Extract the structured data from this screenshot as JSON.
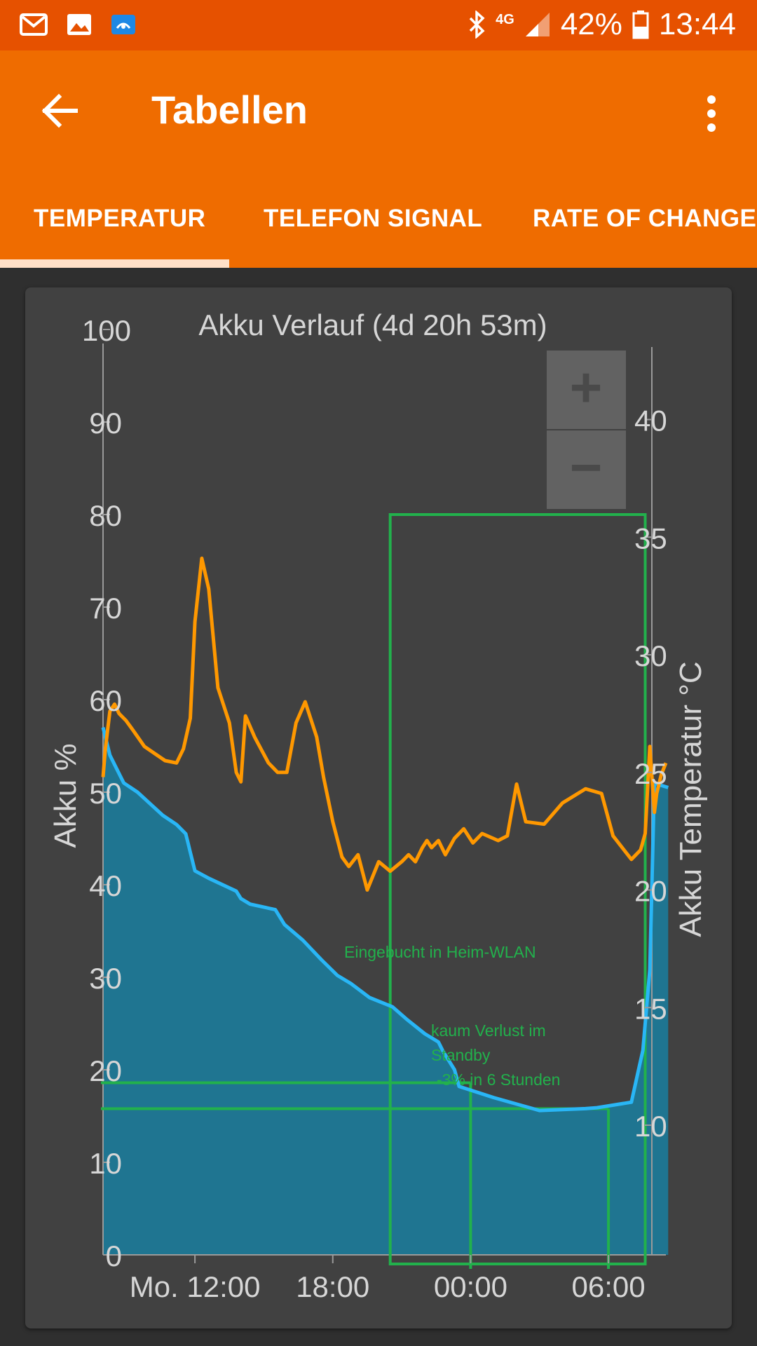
{
  "status_bar": {
    "battery_percent": "42%",
    "time": "13:44",
    "network": "4G",
    "notification_icons": [
      "mail-icon",
      "image-icon",
      "app-icon"
    ]
  },
  "app_bar": {
    "title": "Tabellen",
    "tabs": [
      {
        "label": "TEMPERATUR",
        "selected": true
      },
      {
        "label": "TELEFON SIGNAL",
        "selected": false
      },
      {
        "label": "RATE OF CHANGE",
        "selected": false
      }
    ]
  },
  "zoom": {
    "plus": "+",
    "minus": "−"
  },
  "colors": {
    "accent": "#ef6c00",
    "status_bar": "#e65100",
    "battery_series": "#29b6f6",
    "temperature_series": "#ff9800",
    "annotation": "#22b14c"
  },
  "chart_data": {
    "type": "area",
    "title": "Akku Verlauf (4d 20h 53m)",
    "ylabel": "Akku %",
    "y2label": "Akku Temperatur °C",
    "ylim": [
      0,
      100
    ],
    "y2lim": [
      5,
      44
    ],
    "yticks": [
      "0",
      "10",
      "20",
      "30",
      "40",
      "50",
      "60",
      "70",
      "80",
      "90",
      "100"
    ],
    "y2ticks": [
      "10",
      "15",
      "20",
      "25",
      "30",
      "35",
      "40"
    ],
    "y2tick_values": [
      10,
      15,
      20,
      25,
      30,
      35,
      40
    ],
    "xlim": [
      8,
      32.5
    ],
    "xticks": [
      {
        "label": "Mo. 12:00",
        "x": 12
      },
      {
        "label": "18:00",
        "x": 18
      },
      {
        "label": "00:00",
        "x": 24
      },
      {
        "label": "06:00",
        "x": 30
      }
    ],
    "grid": false,
    "series": [
      {
        "name": "Akku",
        "axis": "left",
        "x": [
          8.0,
          8.1,
          8.3,
          8.9,
          9.5,
          10.6,
          11.2,
          11.6,
          11.7,
          11.8,
          11.9,
          12.0,
          12.6,
          13.8,
          14.0,
          14.4,
          15.5,
          15.9,
          16.7,
          17.5,
          18.2,
          18.8,
          19.6,
          20.6,
          21.2,
          22.0,
          22.6,
          22.8,
          23.3,
          23.5,
          24.0,
          25.0,
          27.0,
          29.0,
          29.5,
          31.0,
          31.3,
          31.5,
          31.8,
          32.0,
          32.2,
          32.6
        ],
        "y": [
          57,
          56,
          54,
          51,
          50,
          47.5,
          46.5,
          45.5,
          44.5,
          43.5,
          42.5,
          41.5,
          40.7,
          39.3,
          38.5,
          37.9,
          37.3,
          35.7,
          34.0,
          31.9,
          30.2,
          29.3,
          27.8,
          26.8,
          25.5,
          23.9,
          23.0,
          22.0,
          20.0,
          18.2,
          17.8,
          17.0,
          15.6,
          15.8,
          15.9,
          16.5,
          19.9,
          22.1,
          30.8,
          51.0,
          50.8,
          50.5
        ]
      },
      {
        "name": "Temperatur",
        "axis": "right",
        "x": [
          8.0,
          8.1,
          8.3,
          8.5,
          8.7,
          9.0,
          9.3,
          9.8,
          10.7,
          11.2,
          11.5,
          11.8,
          12.0,
          12.3,
          12.6,
          13.0,
          13.5,
          13.8,
          14.0,
          14.2,
          14.6,
          15.2,
          15.6,
          16.0,
          16.4,
          16.8,
          17.3,
          17.6,
          18.0,
          18.4,
          18.7,
          19.1,
          19.5,
          20.0,
          20.5,
          21.0,
          21.3,
          21.6,
          21.9,
          22.1,
          22.3,
          22.6,
          22.9,
          23.3,
          23.7,
          24.1,
          24.5,
          25.2,
          25.6,
          26.0,
          26.4,
          27.2,
          28.0,
          29.0,
          29.7,
          30.2,
          31.0,
          31.4,
          31.6,
          31.8,
          32.0,
          32.1,
          32.3,
          32.5
        ],
        "y": [
          24.8,
          26.0,
          27.6,
          27.9,
          27.5,
          27.2,
          26.8,
          26.1,
          25.5,
          25.4,
          26.0,
          27.3,
          31.4,
          34.1,
          32.8,
          28.6,
          27.1,
          25.0,
          24.6,
          27.4,
          26.5,
          25.4,
          25.0,
          25.0,
          27.1,
          28.0,
          26.5,
          24.8,
          22.9,
          21.4,
          21.0,
          21.5,
          20.0,
          21.2,
          20.8,
          21.2,
          21.5,
          21.2,
          21.8,
          22.1,
          21.8,
          22.1,
          21.5,
          22.2,
          22.6,
          22.0,
          22.4,
          22.1,
          22.3,
          24.5,
          22.9,
          22.8,
          23.7,
          24.3,
          24.1,
          22.3,
          21.3,
          21.7,
          22.4,
          26.1,
          23.3,
          24.1,
          24.9,
          25.4
        ]
      }
    ],
    "annotations": [
      {
        "text": "Eingebucht in Heim-WLAN"
      },
      {
        "lines": [
          "kaum Verlust im",
          "Standby",
          "-3% in 6 Stunden"
        ]
      }
    ],
    "guide_lines": {
      "box": {
        "x0": 20.5,
        "x1": 31.6,
        "ytop": 80
      },
      "hlines": [
        {
          "y": 18.6,
          "x0": 8,
          "x1": 24
        },
        {
          "y": 15.8,
          "x0": 8,
          "x1": 30
        }
      ],
      "vlines": [
        {
          "x": 24,
          "y": 18.6
        },
        {
          "x": 30,
          "y": 15.8
        }
      ]
    }
  }
}
